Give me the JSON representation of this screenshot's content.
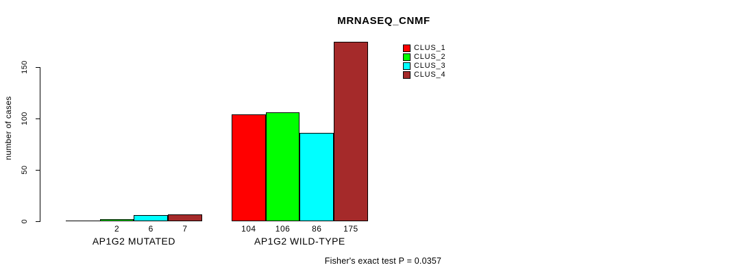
{
  "chart_data": {
    "type": "bar",
    "title": "MRNASEQ_CNMF",
    "ylabel": "number of cases",
    "xlabel": "",
    "ylim": [
      0,
      175
    ],
    "yticks": [
      0,
      50,
      100,
      150
    ],
    "grid": false,
    "legend_position": "top-right",
    "categories": [
      "AP1G2 MUTATED",
      "AP1G2 WILD-TYPE"
    ],
    "series": [
      {
        "name": "CLUS_1",
        "color": "#FF0000",
        "values": [
          0,
          104
        ]
      },
      {
        "name": "CLUS_2",
        "color": "#00FF00",
        "values": [
          2,
          106
        ]
      },
      {
        "name": "CLUS_3",
        "color": "#00FFFF",
        "values": [
          6,
          86
        ]
      },
      {
        "name": "CLUS_4",
        "color": "#A52A2A",
        "values": [
          7,
          175
        ]
      }
    ],
    "bar_value_labels": [
      [
        "",
        "2",
        "6",
        "7"
      ],
      [
        "104",
        "106",
        "86",
        "175"
      ]
    ],
    "annotation": "Fisher's exact test P = 0.0357"
  }
}
